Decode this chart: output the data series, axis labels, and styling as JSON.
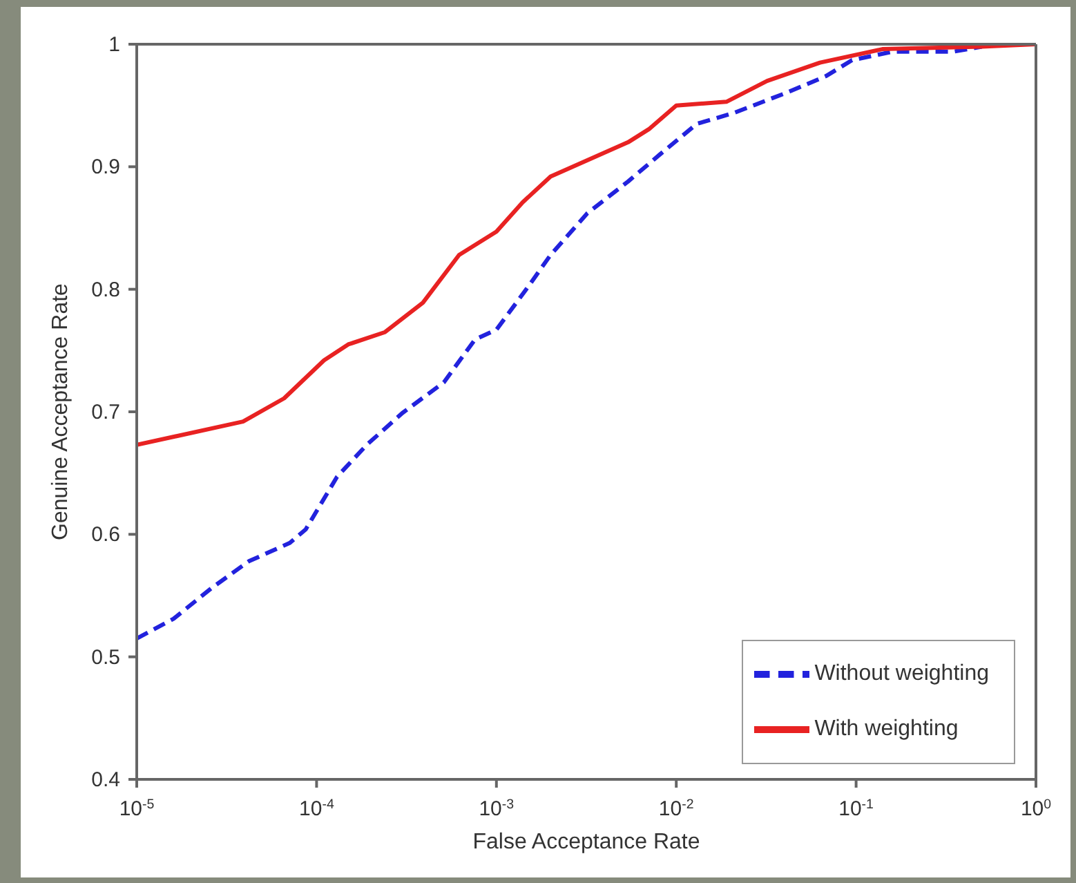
{
  "chart_data": {
    "type": "line",
    "xlabel": "False Acceptance Rate",
    "ylabel": "Genuine Acceptance Rate",
    "log": "x",
    "xlim": [
      1e-05,
      1
    ],
    "ylim": [
      0.4,
      1
    ],
    "xticks": [
      {
        "value": 1e-05,
        "label": "10$^{-5}$"
      },
      {
        "value": 0.0001,
        "label": "10$^{-4}$"
      },
      {
        "value": 0.001,
        "label": "10$^{-3}$"
      },
      {
        "value": 0.01,
        "label": "10$^{-2}$"
      },
      {
        "value": 0.1,
        "label": "10$^{-1}$"
      },
      {
        "value": 1,
        "label": "10$^{0}$"
      }
    ],
    "yticks": [
      0.4,
      0.5,
      0.6,
      0.7,
      0.8,
      0.9,
      1
    ],
    "grid": false,
    "legend": "bottom right",
    "marker": "none",
    "series": [
      {
        "name": "Without weighting",
        "color": "#2222dd",
        "line_style": "dashed",
        "x": [
          1e-05,
          1.6e-05,
          2.6e-05,
          4.2e-05,
          7.1e-05,
          8.7e-05,
          0.00013,
          0.00019,
          0.0003,
          0.00051,
          0.00076,
          0.001,
          0.0015,
          0.002,
          0.0032,
          0.0054,
          0.0081,
          0.013,
          0.021,
          0.042,
          0.068,
          0.095,
          0.16,
          0.35,
          0.5
        ],
        "values": [
          0.515,
          0.531,
          0.556,
          0.578,
          0.593,
          0.604,
          0.647,
          0.673,
          0.699,
          0.724,
          0.759,
          0.767,
          0.802,
          0.828,
          0.862,
          0.888,
          0.91,
          0.935,
          0.944,
          0.961,
          0.974,
          0.987,
          0.994,
          0.994,
          0.998
        ]
      },
      {
        "name": "With weighting",
        "color": "#e82222",
        "line_style": "solid",
        "x": [
          1e-05,
          3.9e-05,
          6.6e-05,
          0.00011,
          0.00015,
          0.00024,
          0.00039,
          0.00062,
          0.001,
          0.0014,
          0.002,
          0.0054,
          0.0071,
          0.01,
          0.019,
          0.032,
          0.063,
          0.14,
          0.5,
          1
        ],
        "values": [
          0.673,
          0.692,
          0.711,
          0.742,
          0.755,
          0.765,
          0.789,
          0.828,
          0.847,
          0.871,
          0.892,
          0.92,
          0.931,
          0.95,
          0.953,
          0.97,
          0.985,
          0.996,
          0.998,
          1
        ]
      }
    ]
  }
}
